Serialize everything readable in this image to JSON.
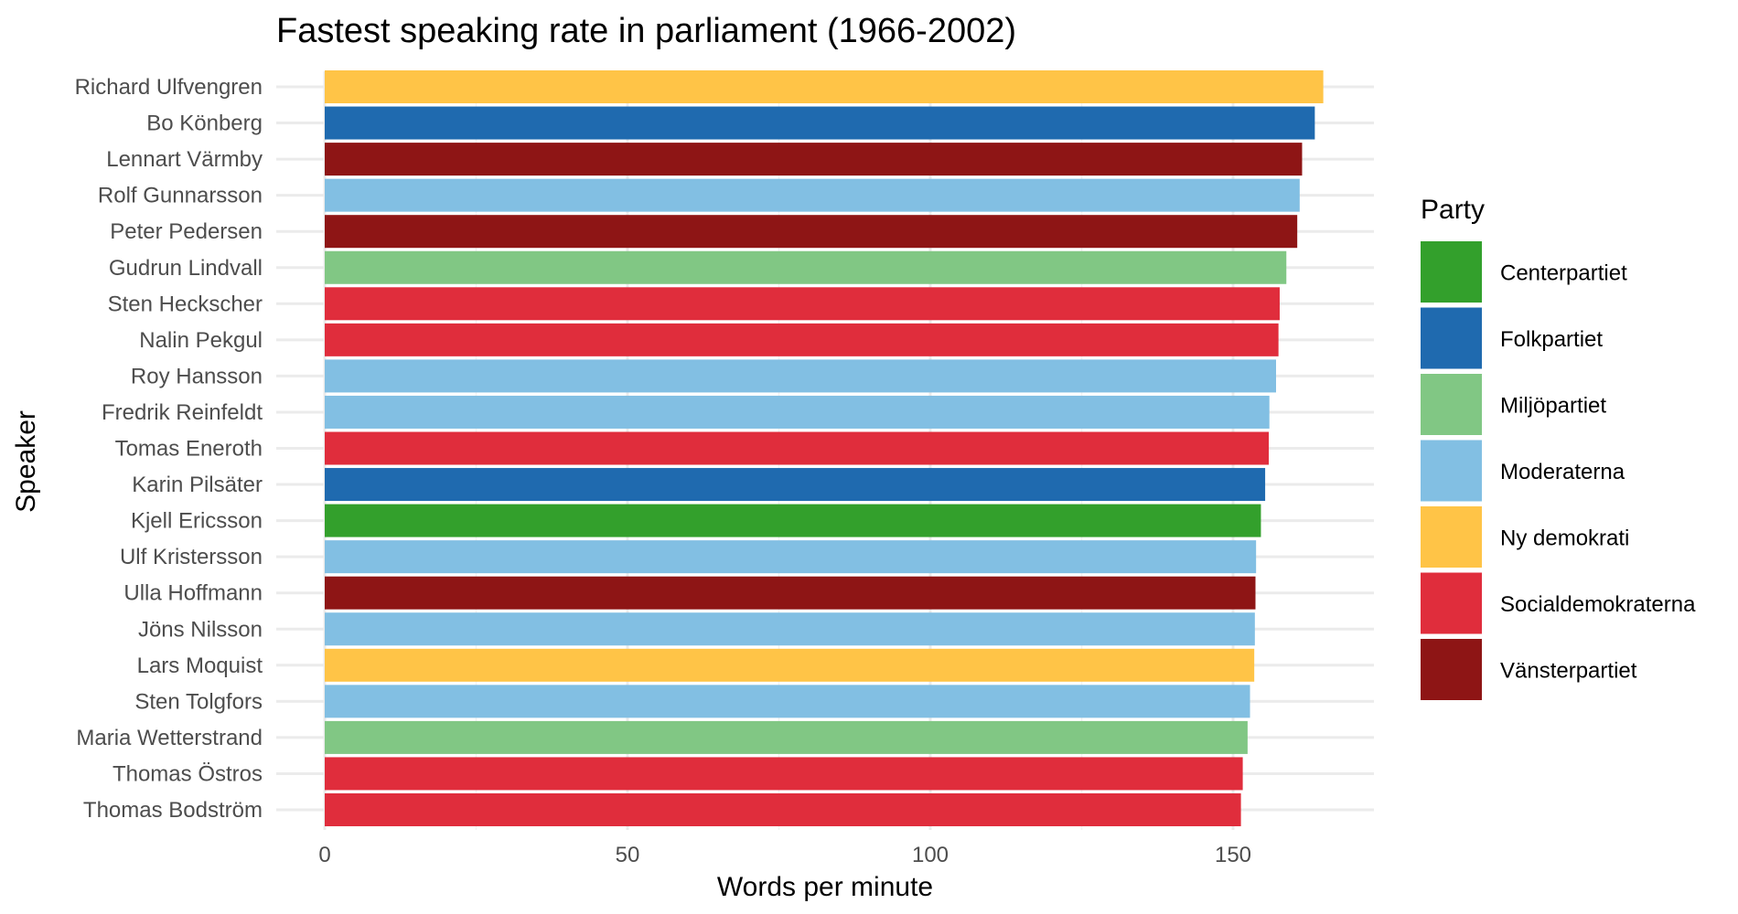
{
  "chart_data": {
    "type": "bar",
    "orientation": "horizontal",
    "title": "Fastest speaking rate in parliament (1966-2002)",
    "xlabel": "Words per minute",
    "ylabel": "Speaker",
    "xlim": [
      0,
      173
    ],
    "x_ticks": [
      0,
      50,
      100,
      150
    ],
    "x_tick_labels": [
      "0",
      "50",
      "100",
      "150"
    ],
    "grid": true,
    "legend": {
      "title": "Party",
      "placement": "right",
      "entries": [
        {
          "label": "Centerpartiet",
          "color": "#33a02c"
        },
        {
          "label": "Folkpartiet",
          "color": "#1f6aaf"
        },
        {
          "label": "Miljöpartiet",
          "color": "#81c784"
        },
        {
          "label": "Moderaterna",
          "color": "#82bfe3"
        },
        {
          "label": "Ny demokrati",
          "color": "#ffc447"
        },
        {
          "label": "Socialdemokraterna",
          "color": "#e02d3c"
        },
        {
          "label": "Vänsterpartiet",
          "color": "#8e1515"
        }
      ]
    },
    "categories": [
      "Richard Ulfvengren",
      "Bo Könberg",
      "Lennart Värmby",
      "Rolf Gunnarsson",
      "Peter Pedersen",
      "Gudrun Lindvall",
      "Sten Heckscher",
      "Nalin Pekgul",
      "Roy Hansson",
      "Fredrik Reinfeldt",
      "Tomas Eneroth",
      "Karin Pilsäter",
      "Kjell Ericsson",
      "Ulf Kristersson",
      "Ulla Hoffmann",
      "Jöns Nilsson",
      "Lars Moquist",
      "Sten Tolgfors",
      "Maria Wetterstrand",
      "Thomas Östros",
      "Thomas Bodström"
    ],
    "values": [
      164.9,
      163.5,
      161.4,
      161.0,
      160.6,
      158.8,
      157.7,
      157.5,
      157.1,
      156.0,
      155.9,
      155.3,
      154.6,
      153.8,
      153.7,
      153.6,
      153.5,
      152.8,
      152.4,
      151.6,
      151.3
    ],
    "parties": [
      "Ny demokrati",
      "Folkpartiet",
      "Vänsterpartiet",
      "Moderaterna",
      "Vänsterpartiet",
      "Miljöpartiet",
      "Socialdemokraterna",
      "Socialdemokraterna",
      "Moderaterna",
      "Moderaterna",
      "Socialdemokraterna",
      "Folkpartiet",
      "Centerpartiet",
      "Moderaterna",
      "Vänsterpartiet",
      "Moderaterna",
      "Ny demokrati",
      "Moderaterna",
      "Miljöpartiet",
      "Socialdemokraterna",
      "Socialdemokraterna"
    ]
  }
}
